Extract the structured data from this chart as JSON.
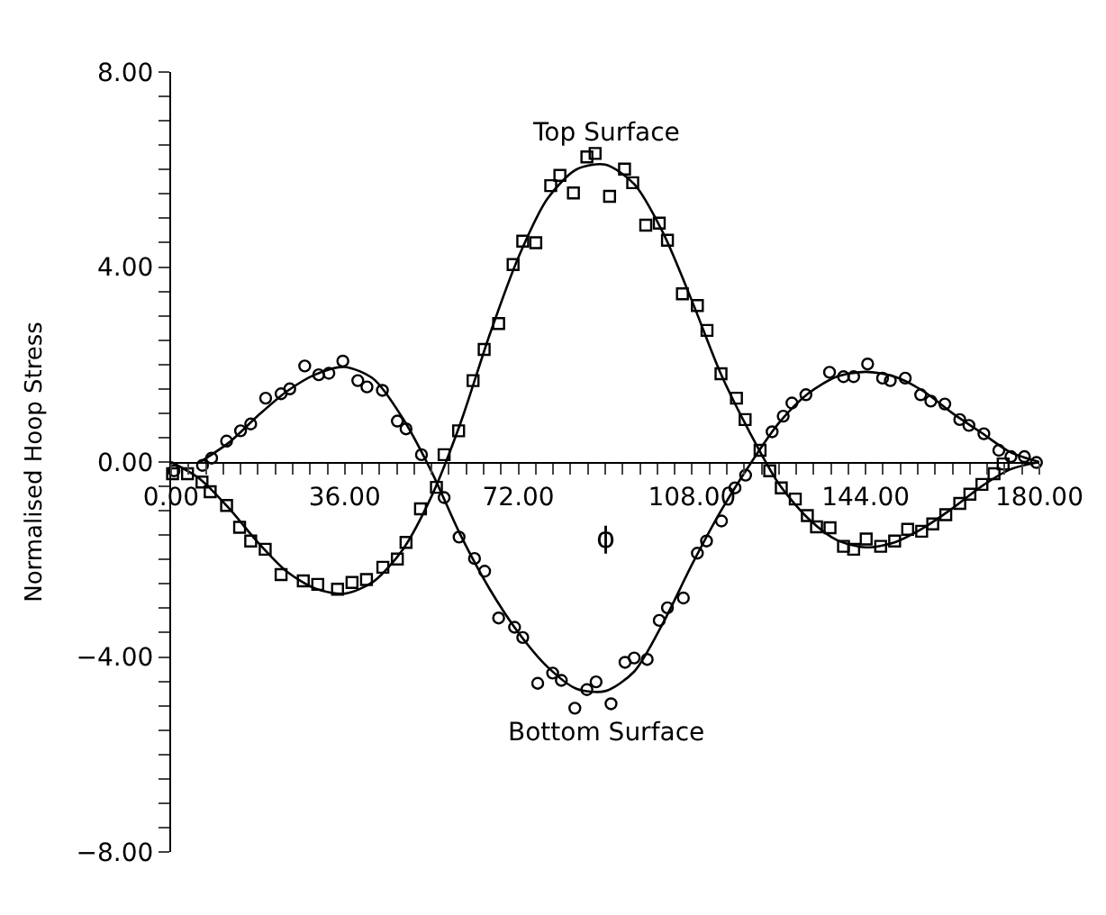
{
  "chart_data": {
    "type": "scatter",
    "xlabel": "ϕ",
    "ylabel": "Normalised Hoop Stress",
    "xlim": [
      0,
      180
    ],
    "ylim": [
      -8,
      8
    ],
    "xticks": [
      {
        "value": 0,
        "label": "0.00"
      },
      {
        "value": 3.6,
        "label": null
      },
      {
        "value": 7.2,
        "label": null
      },
      {
        "value": 10.8,
        "label": null
      },
      {
        "value": 14.4,
        "label": null
      },
      {
        "value": 18,
        "label": null
      },
      {
        "value": 21.6,
        "label": null
      },
      {
        "value": 25.2,
        "label": null
      },
      {
        "value": 28.8,
        "label": null
      },
      {
        "value": 32.4,
        "label": null
      },
      {
        "value": 36,
        "label": "36.00"
      },
      {
        "value": 39.6,
        "label": null
      },
      {
        "value": 43.2,
        "label": null
      },
      {
        "value": 46.8,
        "label": null
      },
      {
        "value": 50.4,
        "label": null
      },
      {
        "value": 54,
        "label": null
      },
      {
        "value": 57.6,
        "label": null
      },
      {
        "value": 61.2,
        "label": null
      },
      {
        "value": 64.8,
        "label": null
      },
      {
        "value": 68.4,
        "label": null
      },
      {
        "value": 72,
        "label": "72.00"
      },
      {
        "value": 75.6,
        "label": null
      },
      {
        "value": 79.2,
        "label": null
      },
      {
        "value": 82.8,
        "label": null
      },
      {
        "value": 86.4,
        "label": null
      },
      {
        "value": 90,
        "label": null
      },
      {
        "value": 93.6,
        "label": null
      },
      {
        "value": 97.2,
        "label": null
      },
      {
        "value": 100.8,
        "label": null
      },
      {
        "value": 104.4,
        "label": null
      },
      {
        "value": 108,
        "label": "108.00"
      },
      {
        "value": 111.6,
        "label": null
      },
      {
        "value": 115.2,
        "label": null
      },
      {
        "value": 118.8,
        "label": null
      },
      {
        "value": 122.4,
        "label": null
      },
      {
        "value": 126,
        "label": null
      },
      {
        "value": 129.6,
        "label": null
      },
      {
        "value": 133.2,
        "label": null
      },
      {
        "value": 136.8,
        "label": null
      },
      {
        "value": 140.4,
        "label": null
      },
      {
        "value": 144,
        "label": "144.00"
      },
      {
        "value": 147.6,
        "label": null
      },
      {
        "value": 151.2,
        "label": null
      },
      {
        "value": 154.8,
        "label": null
      },
      {
        "value": 158.4,
        "label": null
      },
      {
        "value": 162,
        "label": null
      },
      {
        "value": 165.6,
        "label": null
      },
      {
        "value": 169.2,
        "label": null
      },
      {
        "value": 172.8,
        "label": null
      },
      {
        "value": 176.4,
        "label": null
      },
      {
        "value": 180,
        "label": "180.00"
      }
    ],
    "yticks": [
      {
        "value": -8,
        "label": "−8.00"
      },
      {
        "value": -7.5,
        "label": null
      },
      {
        "value": -7,
        "label": null
      },
      {
        "value": -6.5,
        "label": null
      },
      {
        "value": -6,
        "label": null
      },
      {
        "value": -5.5,
        "label": null
      },
      {
        "value": -5,
        "label": null
      },
      {
        "value": -4.5,
        "label": null
      },
      {
        "value": -4,
        "label": "−4.00"
      },
      {
        "value": -3.5,
        "label": null
      },
      {
        "value": -3,
        "label": null
      },
      {
        "value": -2.5,
        "label": null
      },
      {
        "value": -2,
        "label": null
      },
      {
        "value": -1.5,
        "label": null
      },
      {
        "value": -1,
        "label": null
      },
      {
        "value": -0.5,
        "label": null
      },
      {
        "value": 0,
        "label": "0.00"
      },
      {
        "value": 0.5,
        "label": null
      },
      {
        "value": 1,
        "label": null
      },
      {
        "value": 1.5,
        "label": null
      },
      {
        "value": 2,
        "label": null
      },
      {
        "value": 2.5,
        "label": null
      },
      {
        "value": 3,
        "label": null
      },
      {
        "value": 3.5,
        "label": null
      },
      {
        "value": 4,
        "label": "4.00"
      },
      {
        "value": 4.5,
        "label": null
      },
      {
        "value": 5,
        "label": null
      },
      {
        "value": 5.5,
        "label": null
      },
      {
        "value": 6,
        "label": null
      },
      {
        "value": 6.5,
        "label": null
      },
      {
        "value": 7,
        "label": null
      },
      {
        "value": 7.5,
        "label": null
      },
      {
        "value": 8,
        "label": "8.00"
      }
    ],
    "series": [
      {
        "marker": "square",
        "color": "#000000",
        "x": [
          0.3,
          3.4,
          6.4,
          8.1,
          11.5,
          14.2,
          16.5,
          19.5,
          22.8,
          27.4,
          30.4,
          34.5,
          37.5,
          40.5,
          43.9,
          46.9,
          48.7,
          51.7,
          55.0,
          56.6,
          59.6,
          62.6,
          64.9,
          67.9,
          70.9,
          72.9,
          75.6,
          78.7,
          80.6,
          83.4,
          86.2,
          87.9,
          90.9,
          94.0,
          95.7,
          98.4,
          101.2,
          102.9,
          106.0,
          109.1,
          111.1,
          114.0,
          117.2,
          119.0,
          122.1,
          124.1,
          126.5,
          129.4,
          131.9,
          133.8,
          136.6,
          139.4,
          141.5,
          144.1,
          147.1,
          150.0,
          152.7,
          155.6,
          157.9,
          160.6,
          163.5,
          165.6,
          168.1,
          170.6,
          172.5
        ],
        "values": [
          -0.24,
          -0.24,
          -0.41,
          -0.61,
          -0.89,
          -1.34,
          -1.62,
          -1.79,
          -2.31,
          -2.44,
          -2.51,
          -2.61,
          -2.47,
          -2.41,
          -2.16,
          -1.99,
          -1.65,
          -0.96,
          -0.52,
          0.15,
          0.64,
          1.67,
          2.31,
          2.84,
          4.05,
          4.53,
          4.5,
          5.67,
          5.88,
          5.52,
          6.26,
          6.33,
          5.45,
          6.01,
          5.73,
          4.86,
          4.9,
          4.55,
          3.45,
          3.21,
          2.7,
          1.81,
          1.31,
          0.87,
          0.24,
          -0.18,
          -0.53,
          -0.76,
          -1.1,
          -1.33,
          -1.35,
          -1.73,
          -1.79,
          -1.58,
          -1.73,
          -1.62,
          -1.38,
          -1.42,
          -1.27,
          -1.08,
          -0.85,
          -0.66,
          -0.46,
          -0.24,
          -0.04
        ]
      },
      {
        "marker": "circle",
        "color": "#000000",
        "x": [
          0.6,
          6.5,
          8.4,
          11.5,
          14.4,
          16.5,
          19.6,
          22.8,
          24.6,
          27.7,
          30.6,
          32.7,
          35.6,
          38.7,
          40.6,
          43.8,
          46.9,
          48.7,
          51.9,
          56.6,
          59.7,
          62.9,
          65.0,
          67.9,
          71.2,
          72.9,
          76.0,
          79.1,
          80.9,
          83.7,
          86.2,
          88.1,
          91.2,
          94.1,
          96.0,
          98.7,
          101.2,
          102.9,
          106.2,
          109.1,
          111.0,
          114.1,
          116.9,
          119.1,
          124.6,
          126.9,
          128.7,
          131.6,
          136.5,
          139.4,
          141.5,
          144.4,
          147.5,
          149.1,
          152.2,
          155.4,
          157.5,
          160.4,
          163.5,
          165.4,
          168.5,
          171.6,
          174.1,
          176.9,
          179.4
        ],
        "values": [
          -0.18,
          -0.07,
          0.08,
          0.43,
          0.64,
          0.78,
          1.31,
          1.4,
          1.5,
          1.97,
          1.79,
          1.82,
          2.07,
          1.67,
          1.54,
          1.47,
          0.84,
          0.68,
          0.15,
          -0.73,
          -1.54,
          -1.98,
          -2.24,
          -3.2,
          -3.39,
          -3.6,
          -4.54,
          -4.33,
          -4.48,
          -5.05,
          -4.67,
          -4.51,
          -4.96,
          -4.11,
          -4.02,
          -4.05,
          -3.25,
          -2.99,
          -2.79,
          -1.87,
          -1.62,
          -1.21,
          -0.53,
          -0.27,
          0.62,
          0.94,
          1.21,
          1.38,
          1.84,
          1.75,
          1.75,
          2.01,
          1.72,
          1.67,
          1.72,
          1.38,
          1.25,
          1.19,
          0.87,
          0.75,
          0.58,
          0.24,
          0.11,
          0.11,
          -0.01
        ]
      },
      {
        "type": "line",
        "marker": "none",
        "line_style": "solid",
        "color": "#000000",
        "x": [
          0,
          6,
          12,
          18,
          24,
          30,
          36,
          42,
          48,
          54,
          60,
          66,
          72,
          78,
          84,
          90,
          96,
          102,
          108,
          114,
          120,
          126,
          132,
          138,
          144,
          150,
          156,
          162,
          168,
          174,
          180
        ],
        "values": [
          0,
          -0.35,
          -0.95,
          -1.65,
          -2.25,
          -2.6,
          -2.7,
          -2.45,
          -1.8,
          -0.7,
          0.8,
          2.6,
          4.2,
          5.4,
          6.0,
          6.1,
          5.7,
          4.7,
          3.3,
          1.8,
          0.6,
          -0.45,
          -1.15,
          -1.6,
          -1.75,
          -1.65,
          -1.35,
          -0.95,
          -0.5,
          -0.15,
          0
        ]
      },
      {
        "type": "line",
        "marker": "none",
        "line_style": "solid",
        "color": "#000000",
        "x": [
          6,
          12,
          18,
          24,
          30,
          36,
          42,
          48,
          54,
          60,
          66,
          72,
          78,
          84,
          90,
          96,
          102,
          108,
          114,
          120,
          126,
          132,
          138,
          144,
          150,
          156,
          162,
          168,
          174,
          180
        ],
        "values": [
          0,
          0.4,
          0.95,
          1.45,
          1.8,
          1.95,
          1.7,
          0.9,
          -0.2,
          -1.5,
          -2.6,
          -3.5,
          -4.2,
          -4.65,
          -4.7,
          -4.3,
          -3.3,
          -2.1,
          -1.0,
          -0.05,
          0.8,
          1.4,
          1.75,
          1.85,
          1.75,
          1.45,
          1.0,
          0.6,
          0.2,
          0
        ]
      }
    ],
    "annotations": [
      "Top Surface",
      "Bottom Surface"
    ]
  }
}
